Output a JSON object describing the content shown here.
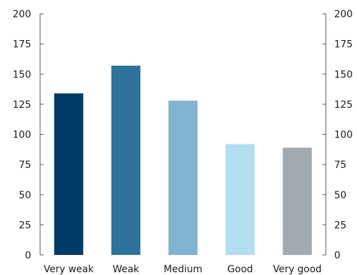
{
  "chart_data": {
    "type": "bar",
    "title": "",
    "xlabel": "",
    "ylabel": "",
    "categories": [
      "Very weak",
      "Weak",
      "Medium",
      "Good",
      "Very good"
    ],
    "values": [
      134,
      157,
      128,
      92,
      89
    ],
    "colors": [
      "#003b66",
      "#2e739c",
      "#7fb3d0",
      "#b3def0",
      "#a3a9b0"
    ],
    "ylim": [
      0,
      200
    ],
    "yticks": [
      0,
      25,
      50,
      75,
      100,
      125,
      150,
      175,
      200
    ],
    "secondary_y_axis": true,
    "grid": false,
    "legend": "none"
  }
}
